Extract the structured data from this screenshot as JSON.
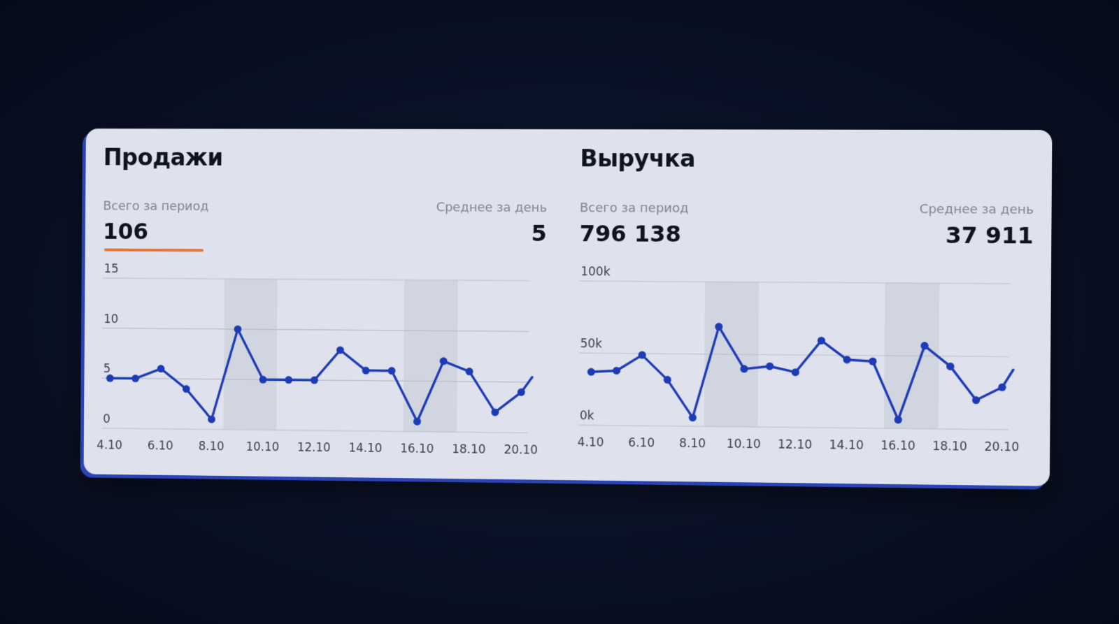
{
  "sales": {
    "title": "Продажи",
    "total_label": "Всего за период",
    "total_value": "106",
    "avg_label": "Среднее за день",
    "avg_value": "5"
  },
  "revenue": {
    "title": "Выручка",
    "total_label": "Всего за период",
    "total_value": "796 138",
    "avg_label": "Среднее за день",
    "avg_value": "37 911"
  },
  "colors": {
    "line": "#1c3bb5",
    "accent_underline": "#e0773a",
    "grid": "#b9bdca",
    "weekend_band": "#cfd2de",
    "text": "#0e1322",
    "muted": "#7e8496"
  },
  "chart_data": [
    {
      "type": "line",
      "name": "sales",
      "x": [
        "4.10",
        "5.10",
        "6.10",
        "7.10",
        "8.10",
        "9.10",
        "10.10",
        "11.10",
        "12.10",
        "13.10",
        "14.10",
        "15.10",
        "16.10",
        "17.10",
        "18.10",
        "19.10",
        "20.10"
      ],
      "x_tick_labels": [
        "4.10",
        "6.10",
        "8.10",
        "10.10",
        "12.10",
        "14.10",
        "16.10",
        "18.10",
        "20.10"
      ],
      "series": [
        {
          "values": [
            5,
            5,
            6,
            4,
            1,
            10,
            5,
            5,
            5,
            8,
            6,
            6,
            1,
            7,
            6,
            2,
            4
          ]
        }
      ],
      "trailing_value": 5.5,
      "y_ticks": [
        "0",
        "5",
        "10",
        "15"
      ],
      "ylim": [
        0,
        15
      ],
      "weekend_bands": [
        [
          "9.10",
          "10.10"
        ],
        [
          "16.10",
          "17.10"
        ]
      ],
      "grid": true
    },
    {
      "type": "line",
      "name": "revenue",
      "x": [
        "4.10",
        "5.10",
        "6.10",
        "7.10",
        "8.10",
        "9.10",
        "10.10",
        "11.10",
        "12.10",
        "13.10",
        "14.10",
        "15.10",
        "16.10",
        "17.10",
        "18.10",
        "19.10",
        "20.10"
      ],
      "x_tick_labels": [
        "4.10",
        "6.10",
        "8.10",
        "10.10",
        "12.10",
        "14.10",
        "16.10",
        "18.10",
        "20.10"
      ],
      "series": [
        {
          "values": [
            37000,
            38000,
            49000,
            32000,
            6000,
            69000,
            40000,
            42000,
            38000,
            60000,
            47000,
            46000,
            6000,
            57000,
            43000,
            20000,
            29000
          ]
        }
      ],
      "trailing_value": 41000,
      "y_ticks": [
        "0k",
        "50k",
        "100k"
      ],
      "ylim": [
        0,
        100000
      ],
      "weekend_bands": [
        [
          "9.10",
          "10.10"
        ],
        [
          "16.10",
          "17.10"
        ]
      ],
      "grid": true
    }
  ]
}
